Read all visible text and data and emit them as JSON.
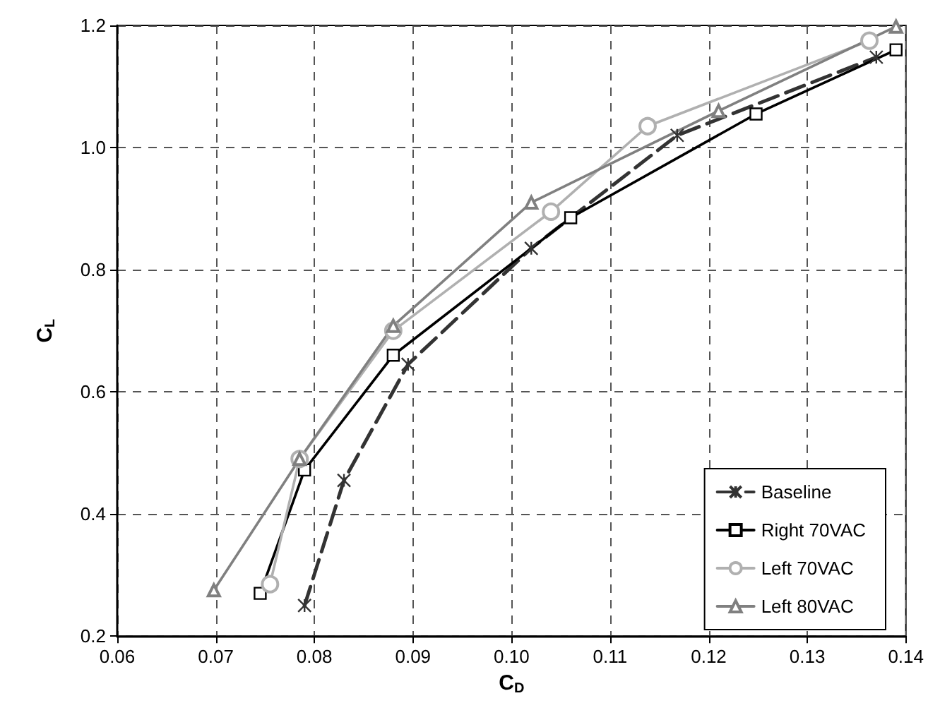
{
  "chart_data": {
    "type": "line",
    "xlabel": "C$_{D}$",
    "ylabel": "C$_{L}$",
    "xlim": [
      0.06,
      0.14
    ],
    "xticks": [
      0.06,
      0.07,
      0.08,
      0.09,
      {
        "value": 0.1,
        "label": "0.10"
      },
      0.11,
      0.12,
      0.13,
      0.14
    ],
    "ylim": [
      0.2,
      1.2
    ],
    "yticks": [
      0.2,
      0.4,
      0.6,
      0.8,
      {
        "value": 1,
        "label": "1.0"
      },
      1.2
    ],
    "grid": true,
    "legend": "bottom right",
    "series": [
      {
        "name": "Baseline",
        "color": "#333333",
        "marker": "cross",
        "line_style": "dashed",
        "x": [
          0.079,
          0.083,
          0.0895,
          0.102,
          0.1168,
          0.137
        ],
        "values": [
          0.25,
          0.455,
          0.645,
          0.835,
          1.02,
          1.148
        ]
      },
      {
        "name": "Right 70VAC",
        "color": "#000000",
        "marker": "square",
        "line_style": "solid",
        "x": [
          0.0745,
          0.079,
          0.088,
          0.106,
          0.1248,
          0.139
        ],
        "values": [
          0.27,
          0.472,
          0.66,
          0.885,
          1.055,
          1.16
        ]
      },
      {
        "name": "Left 70VAC",
        "color": "#b0b0b0",
        "marker": "circle",
        "line_style": "solid",
        "x": [
          0.0755,
          0.0785,
          0.088,
          0.104,
          0.1138,
          0.1363
        ],
        "values": [
          0.285,
          0.49,
          0.7,
          0.895,
          1.035,
          1.175
        ]
      },
      {
        "name": "Left 80VAC",
        "color": "#808080",
        "marker": "triangle",
        "line_style": "solid",
        "x": [
          0.0698,
          0.0785,
          0.088,
          0.102,
          0.121,
          0.139
        ],
        "values": [
          0.275,
          0.49,
          0.708,
          0.91,
          1.06,
          1.198
        ]
      }
    ]
  }
}
